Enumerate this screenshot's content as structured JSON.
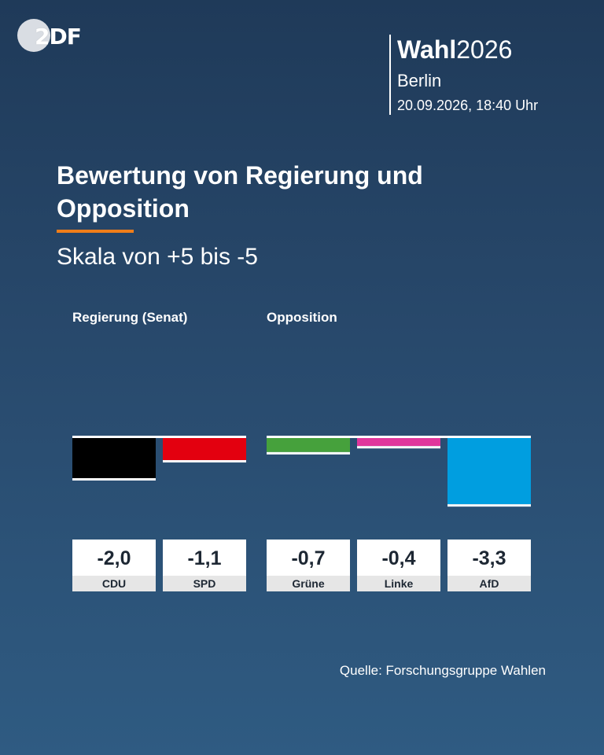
{
  "logo": {
    "text_a": "2",
    "text_b": "DF"
  },
  "header": {
    "brand_bold": "Wahl",
    "brand_year": "2026",
    "city": "Berlin",
    "datetime": "20.09.2026, 18:40 Uhr"
  },
  "title": "Bewertung von Regierung und Opposition",
  "subtitle": "Skala von +5 bis -5",
  "groups": {
    "government": "Regierung (Senat)",
    "opposition": "Opposition"
  },
  "source": "Quelle: Forschungsgruppe Wahlen",
  "chart_data": {
    "type": "bar",
    "categories": [
      "CDU",
      "SPD",
      "Grüne",
      "Linke",
      "AfD"
    ],
    "values": [
      -2.0,
      -1.1,
      -0.7,
      -0.4,
      -3.3
    ],
    "value_labels": [
      "-2,0",
      "-1,1",
      "-0,7",
      "-0,4",
      "-3,3"
    ],
    "colors": [
      "#000000",
      "#e3000f",
      "#46a13c",
      "#e0369c",
      "#009ee0"
    ],
    "groups": [
      "Regierung (Senat)",
      "Regierung (Senat)",
      "Opposition",
      "Opposition",
      "Opposition"
    ],
    "ylim": [
      -5,
      5
    ],
    "title": "Bewertung von Regierung und Opposition",
    "subtitle": "Skala von +5 bis -5",
    "grid": false
  }
}
